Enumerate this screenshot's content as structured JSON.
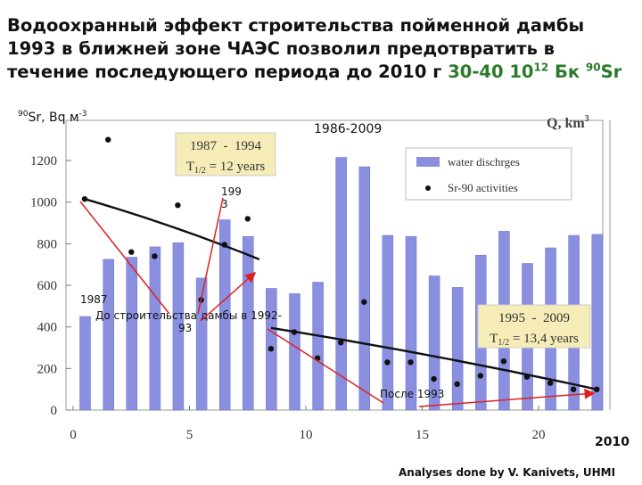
{
  "title": {
    "line1": "Водоохранный эффект строительства пойменной дамбы",
    "line2": "1993 в ближней зоне ЧАЭС позволил предотвратить в",
    "line3_prefix": "течение последующего периода до 2010 г ",
    "line3_highlight": "30-40 10",
    "line3_exp": "12",
    "line3_unit": " Бк ",
    "line3_iso_mass": "90",
    "line3_iso": "Sr"
  },
  "annotations": {
    "left_axis_iso_mass": "90",
    "left_axis_label": "Sr, Bq м",
    "left_axis_exp": "-3",
    "right_axis_label": "Q, km",
    "right_axis_exp": "3",
    "period_top": "1986-2009",
    "label_1993_a": "199",
    "label_1993_b": "3",
    "label_1987": "1987",
    "before_dam_a": "До строительства дамбы в 1992-",
    "before_dam_b": "93",
    "after_1993": "После 1993",
    "year_2010": "2010",
    "credit": "Analyses done by V. Kanivets, UHMI",
    "box1_line1": "1987  -  1994",
    "box1_line2_pre": "T",
    "box1_line2_sub": "1/2",
    "box1_line2_post": " = 12 years",
    "box2_line1": "1995  -  2009",
    "box2_line2_pre": "T",
    "box2_line2_sub": "1/2",
    "box2_line2_post": " = 13,4 years"
  },
  "colors": {
    "bar": "#8a8fe0",
    "highlight": "#2a7a2a",
    "box": "#f5ecb8",
    "arrow": "#e02020"
  },
  "chart_data": {
    "type": "bar",
    "x": [
      1,
      2,
      3,
      4,
      5,
      6,
      7,
      8,
      9,
      10,
      11,
      12,
      13,
      14,
      15,
      16,
      17,
      18,
      19,
      20,
      21,
      22,
      23
    ],
    "series": [
      {
        "name": "water dischrges",
        "values": [
          450,
          725,
          735,
          785,
          805,
          635,
          915,
          835,
          585,
          560,
          615,
          1215,
          1170,
          840,
          835,
          645,
          590,
          745,
          860,
          705,
          780,
          840,
          845
        ]
      },
      {
        "name": "Sr-90 activities",
        "points": [
          [
            0.5,
            1015
          ],
          [
            1.5,
            1300
          ],
          [
            2.5,
            760
          ],
          [
            3.5,
            740
          ],
          [
            4.5,
            985
          ],
          [
            5.5,
            530
          ],
          [
            6.5,
            795
          ],
          [
            7.5,
            920
          ],
          [
            8.5,
            295
          ],
          [
            9.5,
            375
          ],
          [
            10.5,
            250
          ],
          [
            11.5,
            325
          ],
          [
            12.5,
            520
          ],
          [
            13.5,
            230
          ],
          [
            14.5,
            230
          ],
          [
            15.5,
            150
          ],
          [
            16.5,
            125
          ],
          [
            17.5,
            165
          ],
          [
            18.5,
            235
          ],
          [
            19.5,
            160
          ],
          [
            20.5,
            130
          ],
          [
            21.5,
            100
          ],
          [
            22.5,
            100
          ]
        ]
      }
    ],
    "trend_lines": [
      {
        "x": [
          0.5,
          8
        ],
        "y": [
          1015,
          725
        ]
      },
      {
        "x": [
          8.5,
          22.5
        ],
        "y": [
          395,
          100
        ]
      }
    ],
    "xlim": [
      -0.5,
      24.5
    ],
    "ylim": [
      0,
      1400
    ],
    "x_ticks": [
      0,
      5,
      10,
      15,
      20
    ],
    "y_ticks": [
      0,
      200,
      400,
      600,
      800,
      1000,
      1200
    ],
    "legend": "top-right",
    "grid": false
  }
}
